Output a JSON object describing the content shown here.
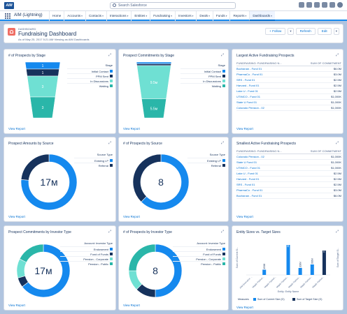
{
  "app": {
    "logo_text": "AIM",
    "name": "AIM (Lightning)",
    "search_placeholder": "Search Salesforce"
  },
  "nav": {
    "tabs": [
      {
        "label": "Home",
        "dd": ""
      },
      {
        "label": "Accounts",
        "dd": "▾"
      },
      {
        "label": "Contacts",
        "dd": "▾"
      },
      {
        "label": "Interactions",
        "dd": "▾"
      },
      {
        "label": "Entities",
        "dd": "▾"
      },
      {
        "label": "Fundraising",
        "dd": "▾"
      },
      {
        "label": "Investors",
        "dd": "▾"
      },
      {
        "label": "Deals",
        "dd": "▾"
      },
      {
        "label": "Funds",
        "dd": "▾"
      },
      {
        "label": "Reports",
        "dd": "▾"
      },
      {
        "label": "Dashboards",
        "dd": "▾"
      }
    ]
  },
  "header": {
    "label": "Dashboard",
    "title": "Fundraising Dashboard",
    "subtitle": "As of May 25, 2017 5:21 AM·Viewing as AIM Dashboards",
    "follow": "+ Follow",
    "refresh": "Refresh",
    "edit": "Edit"
  },
  "common": {
    "view_report": "View Report",
    "expand": "⤢"
  },
  "colors": {
    "dark": "#16325c",
    "blue": "#1589ee",
    "teal": "#2ab6a9",
    "lteal": "#6fe0d3",
    "navy": "#1d3358",
    "brand": "#1b5297",
    "accent": "#0070d2"
  },
  "cards": {
    "c1": {
      "title": "# of Prospects by Stage",
      "legend_title": "Stage",
      "legend": [
        "Initial Contact",
        "PPM Sent",
        "In Discussions",
        "Waiting"
      ]
    },
    "c2": {
      "title": "Prospect Commitments by Stage",
      "legend_title": "Stage",
      "legend": [
        "Initial Contact",
        "PPM Sent",
        "In Discussions",
        "Waiting"
      ]
    },
    "c3": {
      "title": "Largest Active Fundraising Prospects",
      "col1": "Fundraising: Fundraising N...",
      "col2": "Sum of Commitment",
      "rows": [
        [
          "Buchanan - Fund 01",
          "$6.0M"
        ],
        [
          "PharmaCo - Fund 01",
          "$3.0M"
        ],
        [
          "SRS - Fund 01",
          "$2.5M"
        ],
        [
          "Harvard - Fund 01",
          "$2.5M"
        ],
        [
          "Lake U - Fund 01",
          "$2.5M"
        ],
        [
          "UTIMCO - Fund 01",
          "$1,000K"
        ],
        [
          "State U Fund 01",
          "$1,000K"
        ],
        [
          "Colorado Pension - 02",
          "$1,000K"
        ]
      ]
    },
    "c4": {
      "title": "Prospect Amounts by Source",
      "legend_title": "Source Type",
      "legend": [
        "Existing LP",
        "Referral"
      ],
      "center": "17м"
    },
    "c5": {
      "title": "# of Prospects by Source",
      "legend_title": "Source Type",
      "legend": [
        "Existing LP",
        "Referral"
      ],
      "center": "8"
    },
    "c6": {
      "title": "Smallest Active Fundraising Prospects",
      "col1": "Fundraising: Fundraising N...",
      "col2": "Sum of Commitment",
      "rows": [
        [
          "Colorado Pension - 02",
          "$1,000K"
        ],
        [
          "State U Fund 01",
          "$1,000K"
        ],
        [
          "UTIMCO - Fund 01",
          "$1,000K"
        ],
        [
          "Lake U - Fund 01",
          "$2.5M"
        ],
        [
          "Harvard - Fund 01",
          "$2.5M"
        ],
        [
          "SRS - Fund 01",
          "$2.5M"
        ],
        [
          "PharmaCo - Fund 01",
          "$3.0M"
        ],
        [
          "Buchanan - Fund 01",
          "$6.0M"
        ]
      ]
    },
    "c7": {
      "title": "Prospect Commitments by Investor Type",
      "legend_title": "Account: Investor Type",
      "legend": [
        "Endowment",
        "Fund of Funds",
        "Pension - Corporate",
        "Pension - Public"
      ],
      "center": "17м"
    },
    "c8": {
      "title": "# of Prospects by Investor Type",
      "legend_title": "Account: Investor Type",
      "legend": [
        "Endowment",
        "Fund of Funds",
        "Pension - Corporate",
        "Pension - Public"
      ],
      "center": "8"
    },
    "c9": {
      "title": "Entity Sizes vs. Target Sizes",
      "xlabel": "Entity: Entity Name",
      "y1label": "Sum of Current Si...",
      "y2label": "Sum of Target Si...",
      "measures_label": "Measures",
      "measures": [
        "Sum of Current Size (G)",
        "Sum of Target Size (G)"
      ]
    }
  },
  "chart_data": [
    {
      "id": "funnel-count",
      "type": "funnel",
      "title": "# of Prospects by Stage",
      "categories": [
        "Initial Contact",
        "PPM Sent",
        "In Discussions",
        "Waiting"
      ],
      "values": [
        1,
        1,
        3,
        3
      ],
      "colors": [
        "#1589ee",
        "#16325c",
        "#6fe0d3",
        "#2ab6a9"
      ]
    },
    {
      "id": "funnel-commit",
      "type": "funnel",
      "title": "Prospect Commitments by Stage",
      "categories": [
        "Initial Contact",
        "PPM Sent",
        "In Discussions",
        "Waiting"
      ],
      "values": [
        0.5,
        0.5,
        9.5,
        5.5
      ],
      "labels": [
        "",
        "",
        "9.5м",
        "5.5м"
      ],
      "colors": [
        "#1589ee",
        "#16325c",
        "#6fe0d3",
        "#2ab6a9"
      ]
    },
    {
      "id": "donut-amount-source",
      "type": "pie",
      "title": "Prospect Amounts by Source",
      "categories": [
        "Existing LP",
        "Referral"
      ],
      "values": [
        13,
        4
      ],
      "colors": [
        "#1589ee",
        "#16325c"
      ],
      "center": "17м"
    },
    {
      "id": "donut-count-source",
      "type": "pie",
      "title": "# of Prospects by Source",
      "categories": [
        "Existing LP",
        "Referral"
      ],
      "values": [
        5,
        3
      ],
      "colors": [
        "#1589ee",
        "#16325c"
      ],
      "center": "8"
    },
    {
      "id": "donut-commit-investor",
      "type": "pie",
      "title": "Prospect Commitments by Investor Type",
      "categories": [
        "Endowment",
        "Fund of Funds",
        "Pension - Corporate",
        "Pension - Public"
      ],
      "values": [
        11,
        1,
        2,
        3
      ],
      "colors": [
        "#1589ee",
        "#16325c",
        "#6fe0d3",
        "#2ab6a9"
      ],
      "center": "17м"
    },
    {
      "id": "donut-count-investor",
      "type": "pie",
      "title": "# of Prospects by Investor Type",
      "categories": [
        "Endowment",
        "Fund of Funds",
        "Pension - Corporate",
        "Pension - Public"
      ],
      "values": [
        4,
        1,
        1,
        2
      ],
      "colors": [
        "#1589ee",
        "#16325c",
        "#6fe0d3",
        "#2ab6a9"
      ],
      "center": "8"
    },
    {
      "id": "entity-bars",
      "type": "bar",
      "title": "Entity Sizes vs. Target Sizes",
      "categories": [
        "AIM Executive ...",
        "Maple Partner...",
        "Maple Partner...",
        "Maple Partner...",
        "Maple Partner...",
        "Maple Partner...",
        "Maple Partner..."
      ],
      "series": [
        {
          "name": "Sum of Current Size (G)",
          "values": [
            0,
            150,
            0,
            860,
            200,
            300,
            0
          ],
          "labels": [
            "",
            "150M",
            "",
            "860M",
            "200M",
            "300M",
            ""
          ],
          "color": "#1589ee"
        },
        {
          "name": "Sum of Target Size (G)",
          "values": [
            0,
            0,
            0,
            0,
            0,
            0,
            700
          ],
          "labels": [
            "",
            "",
            "",
            "",
            "",
            "",
            "700M"
          ],
          "color": "#16325c"
        }
      ],
      "ylim": [
        0,
        1000
      ]
    }
  ]
}
